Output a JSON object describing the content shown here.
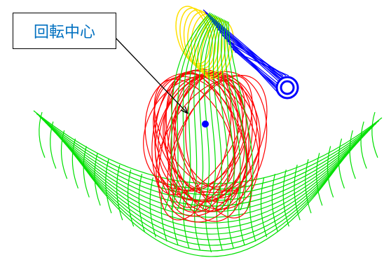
{
  "callout": {
    "label": "回転中心"
  }
}
